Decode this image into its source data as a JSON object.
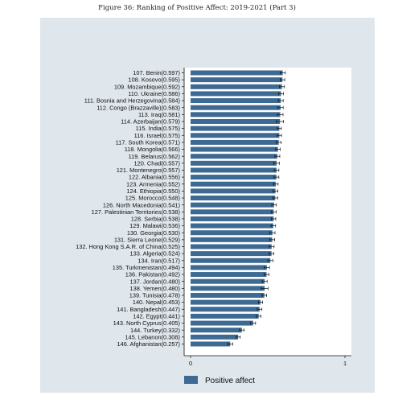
{
  "title": "Figure 36: Ranking of Positive Affect: 2019-2021 (Part 3)",
  "colors": {
    "bar": "#3d6a92",
    "panel": "#dfe6ec",
    "plot": "#ffffff",
    "error": "#111111"
  },
  "chart_data": {
    "type": "bar",
    "orientation": "horizontal",
    "title": "Figure 36: Ranking of Positive Affect: 2019-2021 (Part 3)",
    "xlim": [
      0,
      1
    ],
    "xticks": [
      "0",
      "1"
    ],
    "grid": false,
    "legend": {
      "position": "bottom",
      "entries": [
        "Positive affect"
      ]
    },
    "categories": [
      "107. Benin(0.597)",
      "108. Kosovo(0.595)",
      "109. Mozambique(0.592)",
      "110. Ukraine(0.586)",
      "111. Bosnia and Herzegovina(0.584)",
      "112. Congo (Brazzaville)(0.583)",
      "113. Iraq(0.581)",
      "114. Azerbaijan(0.579)",
      "115. India(0.575)",
      "116. Israel(0.575)",
      "117. South Korea(0.571)",
      "118. Mongolia(0.566)",
      "119. Belarus(0.562)",
      "120. Chad(0.557)",
      "121. Montenegro(0.557)",
      "122. Albania(0.556)",
      "123. Armenia(0.552)",
      "124. Ethiopia(0.550)",
      "125. Morocco(0.548)",
      "126. North Macedonia(0.541)",
      "127. Palestinian Territories(0.538)",
      "128. Serbia(0.538)",
      "129. Malawi(0.536)",
      "130. Georgia(0.530)",
      "131. Sierra Leone(0.529)",
      "132. Hong Kong S.A.R. of China(0.525)",
      "133. Algeria(0.524)",
      "134. Iran(0.517)",
      "135. Turkmenistan(0.494)",
      "136. Pakistan(0.492)",
      "137. Jordan(0.480)",
      "138. Yemen(0.480)",
      "139. Tunisia(0.478)",
      "140. Nepal(0.453)",
      "141. Bangladesh(0.447)",
      "142. Egypt(0.441)",
      "143. North Cyprus(0.405)",
      "144. Turkey(0.332)",
      "145. Lebanon(0.308)",
      "146. Afghanistan(0.257)"
    ],
    "series": [
      {
        "name": "Positive affect",
        "values": [
          0.597,
          0.595,
          0.592,
          0.586,
          0.584,
          0.583,
          0.581,
          0.579,
          0.575,
          0.575,
          0.571,
          0.566,
          0.562,
          0.557,
          0.557,
          0.556,
          0.552,
          0.55,
          0.548,
          0.541,
          0.538,
          0.538,
          0.536,
          0.53,
          0.529,
          0.525,
          0.524,
          0.517,
          0.494,
          0.492,
          0.48,
          0.48,
          0.478,
          0.453,
          0.447,
          0.441,
          0.405,
          0.332,
          0.308,
          0.257
        ],
        "error": [
          0.017,
          0.015,
          0.016,
          0.016,
          0.016,
          0.017,
          0.018,
          0.023,
          0.013,
          0.014,
          0.016,
          0.015,
          0.016,
          0.018,
          0.015,
          0.016,
          0.015,
          0.016,
          0.016,
          0.015,
          0.016,
          0.014,
          0.015,
          0.017,
          0.016,
          0.016,
          0.015,
          0.016,
          0.017,
          0.015,
          0.016,
          0.022,
          0.015,
          0.014,
          0.015,
          0.015,
          0.016,
          0.015,
          0.014,
          0.016
        ]
      }
    ]
  }
}
